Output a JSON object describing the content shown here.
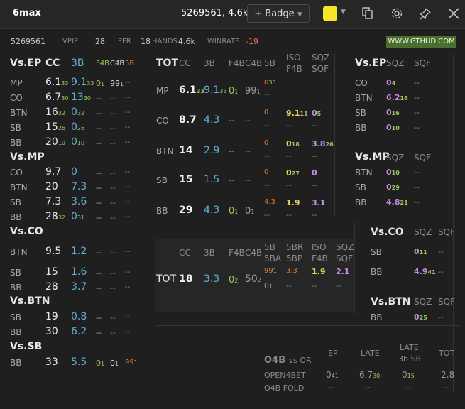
{
  "topbar": {
    "title": "6max",
    "player": "5269561, 4.6k",
    "badge_label": "+ Badge",
    "color": "#f5e629"
  },
  "stats": {
    "id": "5269561",
    "vpip_label": "VPIP",
    "vpip": "28",
    "pfr_label": "PFR",
    "pfr": "18",
    "hands_label": "HANDS",
    "hands": "4.6k",
    "winrate_label": "WINRATE",
    "winrate": "-19",
    "site": "WWW.GTHUD.COM"
  },
  "left": {
    "h_ep": "Vs.EP",
    "cc": "CC",
    "tb": "3B",
    "f4b": "F4B",
    "c4b": "C4B",
    "fb": "5B",
    "h_mp": "Vs.MP",
    "h_co": "Vs.CO",
    "h_btn": "Vs.BTN",
    "h_sb": "Vs.SB",
    "p_mp": "MP",
    "p_co": "CO",
    "p_btn": "BTN",
    "p_sb": "SB",
    "p_bb": "BB",
    "dash": "--",
    "ep": [
      {
        "cc": "6.1",
        "ccs": "33",
        "tb": "9.1",
        "tbs": "33",
        "f": "0",
        "fs": "1",
        "c": "99",
        "cs": "1"
      },
      {
        "cc": "6.7",
        "ccs": "30",
        "tb": "13",
        "tbs": "30"
      },
      {
        "cc": "16",
        "ccs": "32",
        "tb": "0",
        "tbs": "32"
      },
      {
        "cc": "15",
        "ccs": "26",
        "tb": "0",
        "tbs": "26"
      },
      {
        "cc": "20",
        "ccs": "10",
        "tb": "0",
        "tbs": "10"
      }
    ],
    "mp": [
      {
        "cc": "9.7",
        "tb": "0"
      },
      {
        "cc": "20",
        "tb": "7.3"
      },
      {
        "cc": "7.3",
        "tb": "3.6"
      },
      {
        "cc": "28",
        "ccs": "32",
        "tb": "0",
        "tbs": "31"
      }
    ],
    "co": [
      {
        "cc": "9.5",
        "tb": "1.2"
      },
      {
        "cc": "15",
        "tb": "1.6"
      },
      {
        "cc": "28",
        "tb": "3.7"
      }
    ],
    "btn": [
      {
        "cc": "19",
        "tb": "0.8"
      },
      {
        "cc": "30",
        "tb": "6.2"
      }
    ],
    "sb": [
      {
        "cc": "33",
        "tb": "5.5",
        "f": "0",
        "fs": "1",
        "c": "0",
        "cs": "1",
        "five": "99",
        "fives": "1"
      }
    ]
  },
  "tot": {
    "tot": "TOT",
    "cc": "CC",
    "tb": "3B",
    "f4b": "F4B",
    "c4b": "C4B",
    "fb": "5B",
    "iso1": "ISO",
    "iso2": "F4B",
    "sqz1": "SQZ",
    "sqz2": "SQF",
    "mp": {
      "cc": "6.1",
      "ccs": "33",
      "tb": "9.1",
      "tbs": "33",
      "f": "0",
      "fs": "1",
      "c": "99",
      "cs": "1",
      "five": "0",
      "fives": "33"
    },
    "co": {
      "cc": "8.7",
      "tb": "4.3",
      "five": "0",
      "iso": "9.1",
      "isos": "11",
      "sq": "0",
      "sqs": "5"
    },
    "btn": {
      "cc": "14",
      "tb": "2.9",
      "five": "0",
      "iso": "0",
      "isos": "18",
      "sq": "3.8",
      "sqs": "26"
    },
    "sb": {
      "cc": "15",
      "tb": "1.5",
      "five": "0",
      "iso": "0",
      "isos": "27",
      "sq": "0"
    },
    "bb": {
      "cc": "29",
      "tb": "4.3",
      "f": "0",
      "fs": "1",
      "c": "0",
      "cs": "1",
      "five": "4.3",
      "iso": "1.9",
      "sq": "3.1"
    }
  },
  "tot2": {
    "cc": "CC",
    "tb": "3B",
    "f4b": "F4B",
    "c4b": "C4B",
    "a1": "5B",
    "a2": "5BA",
    "b1": "5BR",
    "b2": "5BP",
    "c1": "ISO",
    "c2": "F4B",
    "d1": "SQZ",
    "d2": "SQF",
    "tot": "TOT",
    "v_cc": "18",
    "v_tb": "3.3",
    "v_f": "0",
    "v_fs": "2",
    "v_c": "50",
    "v_cs": "2",
    "v_a": "99",
    "v_as": "1",
    "v_a2": "0",
    "v_a2s": "1",
    "v_b": "3.3",
    "v_c1": "1.9",
    "v_d": "2.1"
  },
  "right": {
    "h_ep": "Vs.EP",
    "h_mp": "Vs.MP",
    "h_co": "Vs.CO",
    "h_btn": "Vs.BTN",
    "sqz": "SQZ",
    "sqf": "SQF",
    "ep": [
      {
        "p": "CO",
        "v": "0",
        "s": "4"
      },
      {
        "p": "BTN",
        "v": "6.2",
        "s": "16"
      },
      {
        "p": "SB",
        "v": "0",
        "s": "16"
      },
      {
        "p": "BB",
        "v": "0",
        "s": "10"
      }
    ],
    "mp": [
      {
        "p": "BTN",
        "v": "0",
        "s": "10"
      },
      {
        "p": "SB",
        "v": "0",
        "s": "29"
      },
      {
        "p": "BB",
        "v": "4.8",
        "s": "21"
      }
    ],
    "co": [
      {
        "p": "SB",
        "v": "0",
        "s": "11"
      },
      {
        "p": "BB",
        "v": "4.9",
        "s": "41"
      }
    ],
    "btn": [
      {
        "p": "BB",
        "v": "0",
        "s": "25"
      }
    ]
  },
  "o4b": {
    "t1": "O4B",
    "t2": "vs OR",
    "ep": "EP",
    "late": "LATE",
    "late2_1": "LATE",
    "late2_2": "3b SB",
    "tot": "TOT",
    "r1": "OPEN4BET",
    "r2": "O4B FOLD",
    "v1": "0",
    "v1s": "41",
    "v2": "6.7",
    "v2s": "30",
    "v3": "0",
    "v3s": "15",
    "v4": "2.8"
  }
}
